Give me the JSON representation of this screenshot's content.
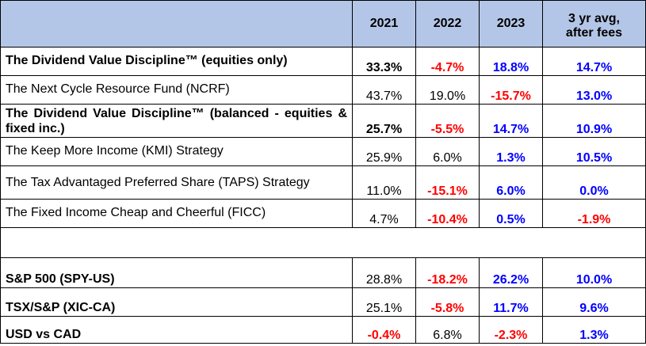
{
  "table": {
    "headers": {
      "name": "",
      "y2021": "2021",
      "y2022": "2022",
      "y2023": "2023",
      "avg_line1": "3 yr avg,",
      "avg_line2": "after fees"
    },
    "rows": [
      {
        "name": "The Dividend Value Discipline™ (equities only)",
        "v2021": "33.3%",
        "v2022": "-4.7%",
        "v2023": "18.8%",
        "avg": "14.7%"
      },
      {
        "name": "The Next Cycle Resource Fund (NCRF)",
        "v2021": "43.7%",
        "v2022": "19.0%",
        "v2023": "-15.7%",
        "avg": "13.0%"
      },
      {
        "name": "The Dividend Value Discipline™ (balanced - equities & fixed inc.)",
        "v2021": "25.7%",
        "v2022": "-5.5%",
        "v2023": "14.7%",
        "avg": "10.9%"
      },
      {
        "name": "The Keep More Income (KMI) Strategy",
        "v2021": "25.9%",
        "v2022": "6.0%",
        "v2023": "1.3%",
        "avg": "10.5%"
      },
      {
        "name": "The Tax Advantaged Preferred Share (TAPS) Strategy",
        "v2021": "11.0%",
        "v2022": "-15.1%",
        "v2023": "6.0%",
        "avg": "0.0%"
      },
      {
        "name": "The Fixed Income Cheap and Cheerful (FICC)",
        "v2021": "4.7%",
        "v2022": "-10.4%",
        "v2023": "0.5%",
        "avg": "-1.9%"
      },
      {
        "name": "S&P 500 (SPY-US)",
        "v2021": "28.8%",
        "v2022": "-18.2%",
        "v2023": "26.2%",
        "avg": "10.0%"
      },
      {
        "name": "TSX/S&P (XIC-CA)",
        "v2021": "25.1%",
        "v2022": "-5.8%",
        "v2023": "11.7%",
        "avg": "9.6%"
      },
      {
        "name": "USD vs CAD",
        "v2021": "-0.4%",
        "v2022": "6.8%",
        "v2023": "-2.3%",
        "avg": "1.3%"
      }
    ]
  },
  "colors": {
    "header_bg": "#b4c6e7",
    "negative": "#ff0000",
    "positive": "#0000ff",
    "neutral": "#000000"
  }
}
